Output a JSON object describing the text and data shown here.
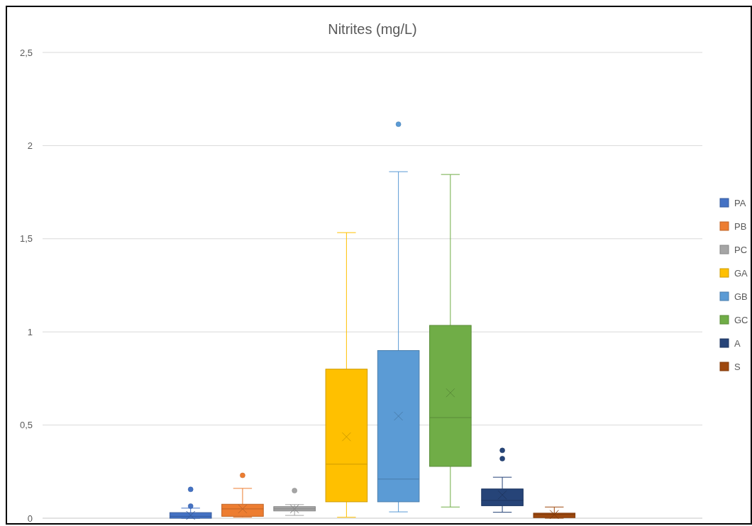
{
  "chart_data": {
    "type": "box",
    "title": "Nitrites (mg/L)",
    "categories": [
      null
    ],
    "ylim": [
      0,
      2.5
    ],
    "yticks": [
      0,
      {
        "value": 0.5,
        "label": "0,5"
      },
      1,
      {
        "value": 1.5,
        "label": "1,5"
      },
      2,
      {
        "value": 2.5,
        "label": "2,5"
      }
    ],
    "grid": "y",
    "legend": "right",
    "series": [
      {
        "name": "PA",
        "color": "#4472c4",
        "boxes": [
          {
            "low": 0,
            "q1": 0,
            "median": 0.01,
            "q3": 0.03,
            "high": 0.054,
            "mean": 0.015,
            "outliers": [
              0.065,
              0.155
            ]
          }
        ]
      },
      {
        "name": "PB",
        "color": "#ed7d31",
        "boxes": [
          {
            "low": 0.005,
            "q1": 0.01,
            "median": 0.05,
            "q3": 0.075,
            "high": 0.16,
            "mean": 0.05,
            "outliers": [
              0.23
            ]
          }
        ]
      },
      {
        "name": "PC",
        "color": "#a5a5a5",
        "boxes": [
          {
            "low": 0.015,
            "q1": 0.039,
            "median": 0.05,
            "q3": 0.062,
            "high": 0.073,
            "mean": 0.05,
            "outliers": [
              0.148
            ]
          }
        ]
      },
      {
        "name": "GA",
        "color": "#ffc000",
        "boxes": [
          {
            "low": 0.005,
            "q1": 0.088,
            "median": 0.29,
            "q3": 0.8,
            "high": 1.533,
            "mean": 0.437
          }
        ]
      },
      {
        "name": "GB",
        "color": "#5b9bd5",
        "boxes": [
          {
            "low": 0.034,
            "q1": 0.088,
            "median": 0.21,
            "q3": 0.9,
            "high": 1.86,
            "mean": 0.548,
            "outliers": [
              2.115
            ]
          }
        ]
      },
      {
        "name": "GC",
        "color": "#70ad47",
        "boxes": [
          {
            "low": 0.06,
            "q1": 0.278,
            "median": 0.54,
            "q3": 1.035,
            "high": 1.845,
            "mean": 0.673
          }
        ]
      },
      {
        "name": "A",
        "color": "#264478",
        "boxes": [
          {
            "low": 0.032,
            "q1": 0.067,
            "median": 0.096,
            "q3": 0.157,
            "high": 0.22,
            "mean": 0.125,
            "outliers": [
              0.32,
              0.364
            ]
          }
        ]
      },
      {
        "name": "S",
        "color": "#9e480e",
        "boxes": [
          {
            "low": 0,
            "q1": 0.003,
            "median": 0.02,
            "q3": 0.027,
            "high": 0.06,
            "mean": 0.02
          }
        ]
      }
    ]
  }
}
